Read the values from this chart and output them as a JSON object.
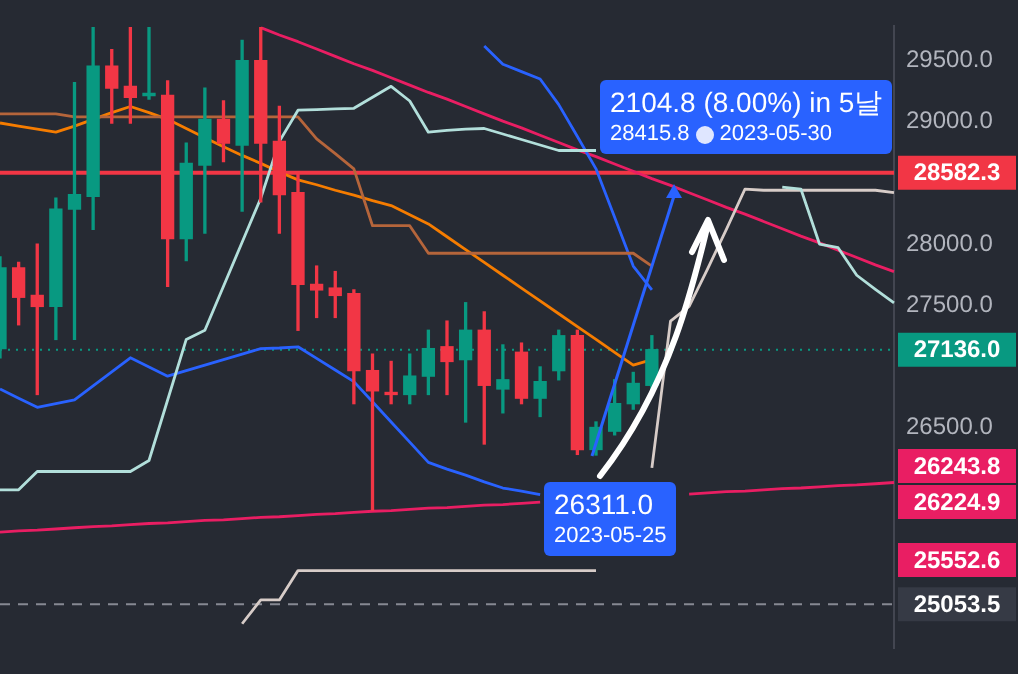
{
  "chart_data": {
    "type": "candlestick",
    "tick_labels": "y",
    "legend": false,
    "categories": [
      null,
      null,
      null,
      null,
      null,
      null,
      null,
      null,
      null,
      null,
      null,
      null,
      null,
      null,
      null,
      null,
      null,
      null,
      null,
      null,
      null,
      null,
      null,
      null,
      null,
      null,
      null,
      null,
      null,
      null,
      null,
      null,
      null,
      null,
      null,
      null,
      null,
      null,
      null,
      null,
      null,
      null,
      null,
      null,
      null,
      null,
      null,
      null,
      null
    ],
    "ohlc": [
      [
        27145,
        27895,
        27070,
        27805
      ],
      [
        27805,
        27850,
        27340,
        27565
      ],
      [
        27580,
        28000,
        26770,
        27490
      ],
      [
        27490,
        28375,
        27220,
        28285
      ],
      [
        28285,
        29320,
        27220,
        28405
      ],
      [
        28390,
        29770,
        28120,
        29455
      ],
      [
        29455,
        29590,
        28990,
        29275
      ],
      [
        29290,
        29770,
        28990,
        29200
      ],
      [
        29215,
        29770,
        29185,
        29230
      ],
      [
        29215,
        29335,
        27655,
        28045
      ],
      [
        28045,
        28825,
        27865,
        28660
      ],
      [
        28645,
        29275,
        28090,
        29020
      ],
      [
        29020,
        29170,
        28675,
        28825
      ],
      [
        28810,
        29665,
        28270,
        29500
      ],
      [
        29500,
        29770,
        28345,
        28825
      ],
      [
        28840,
        29125,
        28090,
        28405
      ],
      [
        28420,
        28570,
        27295,
        27670
      ],
      [
        27670,
        27820,
        27400,
        27625
      ],
      [
        27640,
        27775,
        27400,
        27580
      ],
      [
        27595,
        27625,
        26695,
        26965
      ],
      [
        26965,
        27100,
        25825,
        26800
      ],
      [
        26785,
        27040,
        26695,
        26770
      ],
      [
        26770,
        27100,
        26695,
        26920
      ],
      [
        26920,
        27295,
        26770,
        27145
      ],
      [
        27160,
        27370,
        26770,
        27040
      ],
      [
        27055,
        27520,
        26545,
        27295
      ],
      [
        27295,
        27445,
        26365,
        26845
      ],
      [
        26815,
        27175,
        26620,
        26890
      ],
      [
        27115,
        27190,
        26695,
        26740
      ],
      [
        26740,
        26995,
        26590,
        26875
      ],
      [
        26965,
        27295,
        26890,
        27250
      ],
      [
        27250,
        27295,
        26280,
        26320
      ],
      [
        26320,
        26545,
        26275,
        26500
      ],
      [
        26470,
        26890,
        26440,
        26695
      ],
      [
        26695,
        26950,
        26650,
        26860
      ],
      [
        26845,
        27250,
        26800,
        27136
      ],
      null,
      null,
      null,
      null,
      null,
      null,
      null,
      null,
      null,
      null,
      null,
      null,
      null
    ],
    "series": [
      {
        "type": "line",
        "color": "#b2dfdb",
        "values": [
          25990,
          25990,
          26140,
          26140,
          26140,
          26140,
          26140,
          26140,
          26230,
          26725,
          27220,
          27295,
          27655,
          28015,
          28375,
          28840,
          29095,
          29100,
          29105,
          29110,
          29200,
          29290,
          29170,
          28915,
          28930,
          28940,
          28945,
          28900,
          28855,
          28810,
          28765,
          28765,
          28765,
          null,
          null,
          null,
          null,
          null,
          null,
          null,
          null,
          null,
          28465,
          28450,
          28000,
          27970,
          27745,
          27630,
          27520
        ]
      },
      {
        "type": "line",
        "color": "#d7ccc8",
        "values": [
          null,
          null,
          null,
          null,
          null,
          null,
          null,
          null,
          null,
          null,
          null,
          null,
          null,
          24895,
          25090,
          25090,
          25330,
          25330,
          25330,
          25330,
          25330,
          25330,
          25330,
          25330,
          25330,
          25330,
          25330,
          25330,
          25330,
          25330,
          25330,
          25330,
          25330,
          null,
          null,
          26170,
          27370,
          27490,
          27800,
          28120,
          28450,
          28440,
          28440,
          28440,
          28440,
          28440,
          28440,
          28440,
          28420
        ]
      },
      {
        "type": "line",
        "color": "#b5653b",
        "values": [
          29065,
          29065,
          29065,
          29065,
          29040,
          29040,
          29040,
          29040,
          29040,
          29040,
          29040,
          29040,
          29040,
          29040,
          29040,
          29040,
          29040,
          28860,
          28740,
          28615,
          28150,
          28150,
          28150,
          27925,
          27925,
          27925,
          27925,
          27925,
          27925,
          27925,
          27925,
          27925,
          27925,
          27925,
          27925,
          27820,
          null,
          null,
          null,
          null,
          null,
          null,
          null,
          null,
          null,
          null,
          null,
          null,
          null
        ]
      },
      {
        "type": "line",
        "color": "#f57c00",
        "values": [
          28990,
          28965,
          28940,
          28915,
          28965,
          29020,
          29075,
          29125,
          29075,
          29020,
          28945,
          28870,
          28795,
          28725,
          28660,
          28590,
          28525,
          28485,
          28440,
          28400,
          28355,
          28315,
          28240,
          28165,
          28060,
          27955,
          27850,
          27745,
          27640,
          27535,
          27430,
          27325,
          27220,
          27115,
          27010,
          27055,
          null,
          null,
          null,
          null,
          null,
          null,
          null,
          null,
          null,
          null,
          null,
          null,
          null
        ]
      },
      {
        "type": "line",
        "color": "#2962ff",
        "values": [
          26815,
          26740,
          26665,
          26695,
          26725,
          26840,
          26955,
          27070,
          26995,
          26920,
          26965,
          27010,
          27055,
          27100,
          27145,
          27150,
          27160,
          27065,
          26970,
          26875,
          26710,
          26545,
          26380,
          26215,
          26160,
          26110,
          26055,
          26005,
          25980,
          25950,
          null,
          null,
          null,
          null,
          null,
          null,
          null,
          null,
          null,
          null,
          null,
          null,
          null,
          null,
          null,
          null,
          null,
          null,
          null
        ]
      },
      {
        "type": "line",
        "color": "#2962ff",
        "values": [
          null,
          null,
          null,
          null,
          null,
          null,
          null,
          null,
          null,
          null,
          null,
          null,
          null,
          null,
          null,
          null,
          null,
          null,
          null,
          null,
          null,
          null,
          null,
          null,
          null,
          null,
          29620,
          29470,
          29410,
          29350,
          29140,
          28880,
          28615,
          28220,
          27820,
          27625,
          null,
          null,
          null,
          null,
          null,
          null,
          null,
          null,
          null,
          null,
          null,
          null,
          null
        ]
      },
      {
        "type": "line",
        "color": "#e91e63",
        "values": [
          null,
          null,
          null,
          null,
          null,
          null,
          null,
          null,
          null,
          null,
          null,
          null,
          null,
          null,
          29770,
          29710,
          29655,
          29595,
          29535,
          29475,
          29420,
          29360,
          29300,
          29240,
          29185,
          29125,
          29065,
          29005,
          28950,
          28890,
          28830,
          28770,
          28715,
          28655,
          28595,
          28535,
          28480,
          28420,
          28360,
          28300,
          28245,
          28185,
          28125,
          28065,
          28010,
          27950,
          27890,
          27830,
          27775
        ]
      },
      {
        "type": "line",
        "color": "#e91e63",
        "values": [
          25645,
          25655,
          25660,
          25670,
          25680,
          25690,
          25695,
          25705,
          25715,
          25720,
          25730,
          25740,
          25745,
          25755,
          25765,
          25770,
          25780,
          25790,
          25795,
          25805,
          25815,
          25820,
          25830,
          25840,
          25845,
          25855,
          25865,
          25870,
          25880,
          25890,
          null,
          null,
          null,
          null,
          null,
          null,
          null,
          25955,
          25965,
          25975,
          25980,
          25990,
          26000,
          26005,
          26015,
          26025,
          26030,
          26040,
          26050
        ]
      }
    ],
    "ylim": [
      24700,
      29780
    ],
    "yticks": [
      {
        "value": 26500,
        "label": "26500.0"
      },
      {
        "value": 27500,
        "label": "27500.0"
      },
      {
        "value": 28000,
        "label": "28000.0"
      },
      {
        "value": 29000,
        "label": "29000.0"
      },
      {
        "value": 29500,
        "label": "29500.0"
      }
    ],
    "ref_lines": [
      {
        "axis": "y",
        "value": 28582.3,
        "label": "28582.3",
        "color": "#f23645",
        "line_style": "solid"
      },
      {
        "axis": "y",
        "value": 27136.0,
        "label": "27136.0",
        "color": "#089981",
        "line_style": "dotted"
      },
      {
        "axis": "y",
        "value": 25053.5,
        "label": "25053.5",
        "color": "#868993",
        "line_style": "dashed"
      }
    ],
    "annotations": [
      "2104.8 (8.00%) in 5날",
      "28415.8",
      "2023-05-30",
      "26311.0",
      "2023-05-25",
      "26243.8",
      "26224.9",
      "25552.6"
    ]
  }
}
